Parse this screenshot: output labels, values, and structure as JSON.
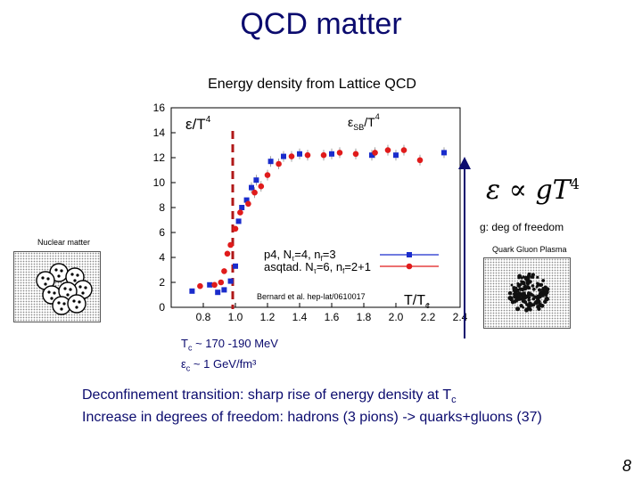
{
  "slide": {
    "title": "QCD matter",
    "page_number": "8",
    "tc_line": "T",
    "tc_sub": "c",
    "tc_value": " ~ 170 -190 MeV",
    "ec_line": "ε",
    "ec_sub": "c",
    "ec_value": " ~ 1 GeV/fm³",
    "summary_1a": "Deconfinement transition: sharp rise of energy density at T",
    "summary_1b": "c",
    "summary_2": "Increase in degrees of freedom: hadrons (3 pions) -> quarks+gluons (37)"
  },
  "annotations": {
    "formula_main": "ε ∝ gT",
    "formula_exp": "4",
    "deg_of_freedom": "g: deg of freedom",
    "nuclear_matter": "Nuclear matter",
    "qgp": "Quark Gluon Plasma"
  },
  "colors": {
    "series_p4": "#1a2ccc",
    "series_asqtad": "#e01b1b",
    "tc_line": "#b01818",
    "title": "#0b0b6e",
    "arrow": "#0b0b6e"
  },
  "chart_data": {
    "type": "scatter",
    "title": "Energy density from Lattice QCD",
    "xlabel": "T/T",
    "xlabel_sub": "c",
    "ylabel": "ε/T",
    "ylabel_sup": "4",
    "sb_label": "ε",
    "sb_sub": "SB",
    "sb_tail": "/T",
    "sb_sup": "4",
    "citation": "Bernard et al. hep-lat/0610017",
    "xlim": [
      0.6,
      2.4
    ],
    "ylim": [
      0,
      16
    ],
    "x_ticks": [
      "0.8",
      "1.0",
      "1.2",
      "1.4",
      "1.6",
      "1.8",
      "2.0",
      "2.2",
      "2.4"
    ],
    "y_ticks": [
      "0",
      "2",
      "4",
      "6",
      "8",
      "10",
      "12",
      "14",
      "16"
    ],
    "tc_marker_x": 1.0,
    "series": [
      {
        "name_main": "p4, N",
        "name_sub1": "τ",
        "name_mid": "=4, n",
        "name_sub2": "f",
        "name_end": "=3",
        "marker": "square",
        "points": [
          {
            "x": 0.73,
            "y": 1.3
          },
          {
            "x": 0.84,
            "y": 1.8
          },
          {
            "x": 0.89,
            "y": 1.2
          },
          {
            "x": 0.93,
            "y": 1.4
          },
          {
            "x": 0.97,
            "y": 2.1
          },
          {
            "x": 1.0,
            "y": 3.3
          },
          {
            "x": 1.02,
            "y": 6.9
          },
          {
            "x": 1.04,
            "y": 8.0
          },
          {
            "x": 1.07,
            "y": 8.6
          },
          {
            "x": 1.1,
            "y": 9.6
          },
          {
            "x": 1.13,
            "y": 10.2
          },
          {
            "x": 1.22,
            "y": 11.7
          },
          {
            "x": 1.3,
            "y": 12.1
          },
          {
            "x": 1.4,
            "y": 12.3
          },
          {
            "x": 1.6,
            "y": 12.3
          },
          {
            "x": 1.85,
            "y": 12.2
          },
          {
            "x": 2.0,
            "y": 12.2
          },
          {
            "x": 2.3,
            "y": 12.4
          }
        ]
      },
      {
        "name_main": "asqtad. N",
        "name_sub1": "τ",
        "name_mid": "=6, n",
        "name_sub2": "f",
        "name_end": "=2+1",
        "marker": "circle",
        "points": [
          {
            "x": 0.78,
            "y": 1.7
          },
          {
            "x": 0.87,
            "y": 1.8
          },
          {
            "x": 0.91,
            "y": 2.0
          },
          {
            "x": 0.93,
            "y": 2.9
          },
          {
            "x": 0.95,
            "y": 4.3
          },
          {
            "x": 0.97,
            "y": 5.0
          },
          {
            "x": 1.0,
            "y": 6.3
          },
          {
            "x": 1.03,
            "y": 7.6
          },
          {
            "x": 1.08,
            "y": 8.3
          },
          {
            "x": 1.12,
            "y": 9.2
          },
          {
            "x": 1.16,
            "y": 9.7
          },
          {
            "x": 1.2,
            "y": 10.6
          },
          {
            "x": 1.27,
            "y": 11.5
          },
          {
            "x": 1.35,
            "y": 12.1
          },
          {
            "x": 1.45,
            "y": 12.2
          },
          {
            "x": 1.55,
            "y": 12.2
          },
          {
            "x": 1.65,
            "y": 12.4
          },
          {
            "x": 1.75,
            "y": 12.3
          },
          {
            "x": 1.87,
            "y": 12.4
          },
          {
            "x": 1.95,
            "y": 12.6
          },
          {
            "x": 2.05,
            "y": 12.6
          },
          {
            "x": 2.15,
            "y": 11.8
          }
        ]
      }
    ]
  }
}
